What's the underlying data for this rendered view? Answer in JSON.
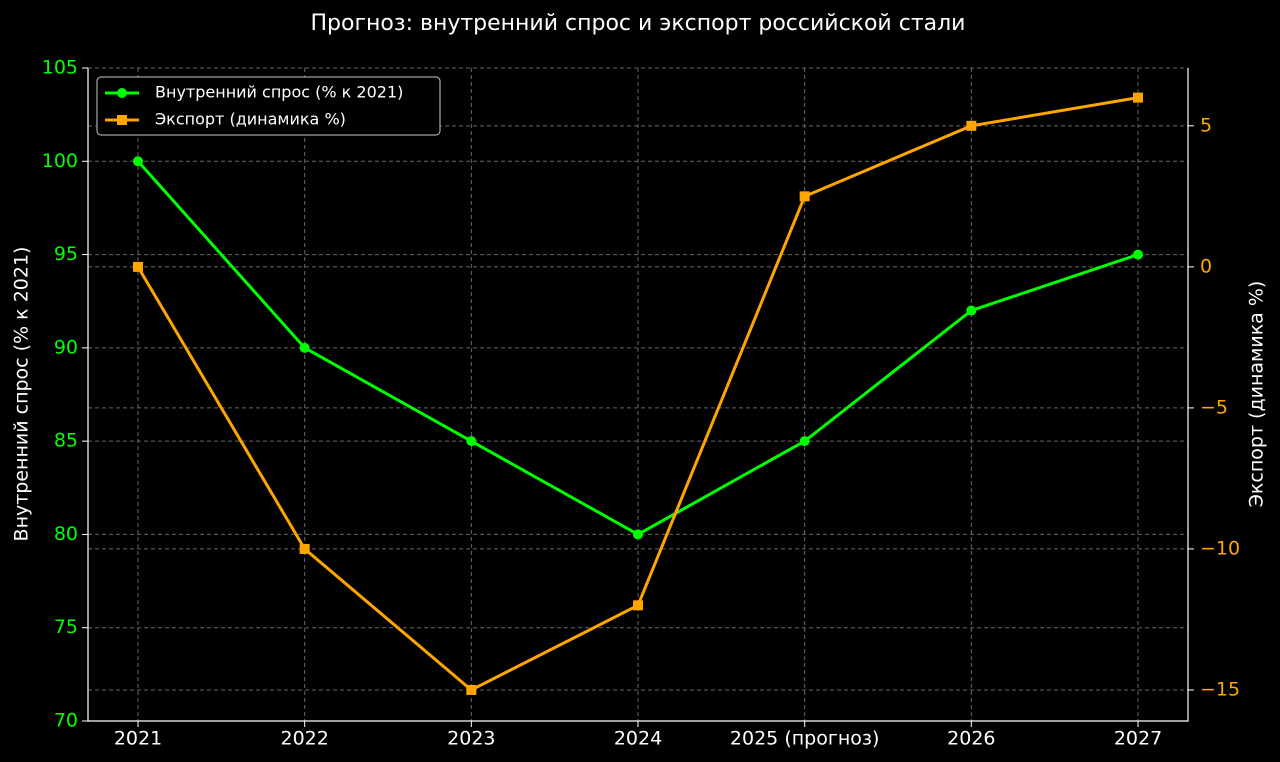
{
  "chart_data": {
    "type": "line",
    "title": "Прогноз: внутренний спрос и экспорт российской стали",
    "y_label": "Внутренний спрос (% к 2021)",
    "y2_label": "Экспорт (динамика %)",
    "categories": [
      "2021",
      "2022",
      "2023",
      "2024",
      "2025 (прогноз)",
      "2026",
      "2027"
    ],
    "series": [
      {
        "name": "Внутренний спрос (% к 2021)",
        "color": "#00ff00",
        "marker": "circle",
        "values": [
          100,
          90,
          85,
          80,
          85,
          92,
          95
        ]
      },
      {
        "name": "Экспорт (динамика %)",
        "color": "#ffa500",
        "marker": "square",
        "axis": "y2",
        "values": [
          0,
          -10,
          -15,
          -12,
          2.5,
          5,
          6
        ]
      }
    ],
    "ylim": [
      70,
      105
    ],
    "yticks": [
      70,
      75,
      80,
      85,
      90,
      95,
      100,
      105
    ],
    "y2lim": [
      -16.1,
      7.05
    ],
    "y2ticks": [
      {
        "value": -15,
        "label": "−15"
      },
      {
        "value": -10,
        "label": "−10"
      },
      {
        "value": -5,
        "label": "−5"
      },
      0,
      5
    ],
    "grid": true,
    "legend": "upper-left"
  }
}
